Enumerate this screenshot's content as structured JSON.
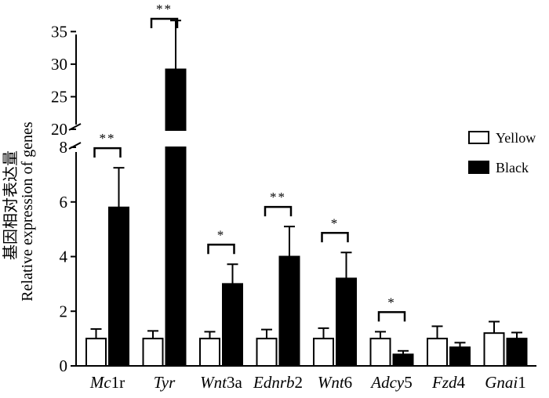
{
  "chart_data": {
    "type": "bar",
    "ylabel_zh": "基因相对表达量",
    "ylabel": "Relative expression of genes",
    "categories": [
      {
        "italic": "Mc",
        "plain": "1r"
      },
      {
        "italic": "Tyr",
        "plain": ""
      },
      {
        "italic": "Wnt",
        "plain": "3a"
      },
      {
        "italic": "Ednrb",
        "plain": "2"
      },
      {
        "italic": "Wnt",
        "plain": "6"
      },
      {
        "italic": "Adcy",
        "plain": "5"
      },
      {
        "italic": "Fzd",
        "plain": "4"
      },
      {
        "italic": "Gnai",
        "plain": "1"
      }
    ],
    "series": [
      {
        "name": "Yellow",
        "color": "#ffffff",
        "values": [
          1.0,
          1.0,
          1.0,
          1.0,
          1.0,
          1.0,
          1.0,
          1.2
        ],
        "errors": [
          0.35,
          0.28,
          0.25,
          0.33,
          0.38,
          0.25,
          0.45,
          0.42
        ]
      },
      {
        "name": "Black",
        "color": "#000000",
        "values": [
          5.8,
          29.2,
          3.0,
          4.0,
          3.2,
          0.42,
          0.68,
          1.0
        ],
        "errors": [
          1.45,
          7.5,
          0.72,
          1.1,
          0.95,
          0.13,
          0.17,
          0.22
        ]
      }
    ],
    "axis_break": {
      "lower_range": [
        0,
        8
      ],
      "upper_range": [
        20,
        36
      ]
    },
    "lower_ticks": [
      "0",
      "2",
      "4",
      "6",
      "8"
    ],
    "upper_ticks": [
      "20",
      "25",
      "30",
      "35"
    ],
    "significance": [
      {
        "category_index": 0,
        "label": "**"
      },
      {
        "category_index": 1,
        "label": "**"
      },
      {
        "category_index": 2,
        "label": "*"
      },
      {
        "category_index": 3,
        "label": "**"
      },
      {
        "category_index": 4,
        "label": "*"
      },
      {
        "category_index": 5,
        "label": "*"
      }
    ],
    "legend_position": "right"
  }
}
